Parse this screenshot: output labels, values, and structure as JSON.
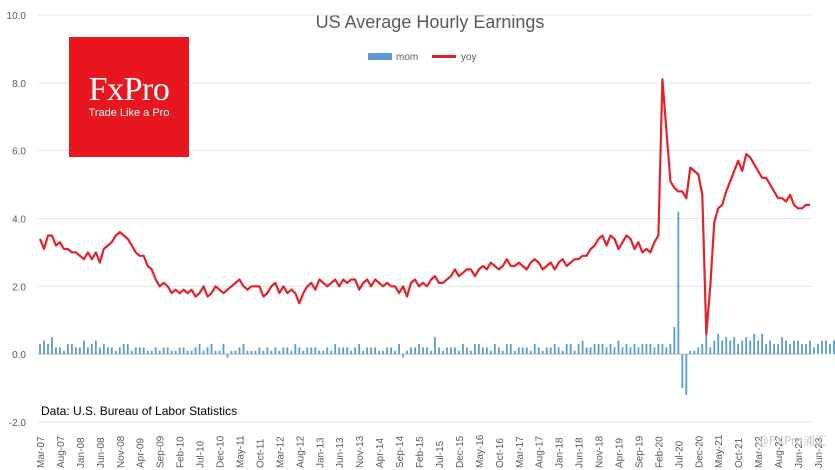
{
  "logo": {
    "word": "FxPro",
    "tagline": "Trade Like a Pro",
    "color": "#e8171f"
  },
  "source_note": "Data: U.S. Bureau of Labor Statistics",
  "watermark": "@FXPro浦汇",
  "chart_data": {
    "type": "bar+line",
    "title": "US Average Hourly Earnings",
    "xlabel": "",
    "ylabel": "",
    "ylim": [
      -2.0,
      10.0
    ],
    "yticks": [
      "-2.0",
      "0.0",
      "2.0",
      "4.0",
      "6.0",
      "8.0",
      "10.0"
    ],
    "grid": true,
    "legend_position": "top-center",
    "x_tick_labels": [
      "Mar-07",
      "Aug-07",
      "Jan-08",
      "Jun-08",
      "Nov-08",
      "Apr-09",
      "Sep-09",
      "Feb-10",
      "Jul-10",
      "Dec-10",
      "May-11",
      "Oct-11",
      "Mar-12",
      "Aug-12",
      "Jan-13",
      "Jun-13",
      "Nov-13",
      "Apr-14",
      "Sep-14",
      "Feb-15",
      "Jul-15",
      "Dec-15",
      "May-16",
      "Oct-16",
      "Mar-17",
      "Aug-17",
      "Jan-18",
      "Jun-18",
      "Nov-18",
      "Apr-19",
      "Sep-19",
      "Feb-20",
      "Jul-20",
      "Dec-20",
      "May-21",
      "Oct-21",
      "Mar-22",
      "Aug-22",
      "Jan-23",
      "Jun-23"
    ],
    "series": [
      {
        "name": "mom",
        "kind": "bar",
        "color": "#5b9bd5",
        "values": [
          0.3,
          0.4,
          0.3,
          0.5,
          0.2,
          0.2,
          0.1,
          0.3,
          0.3,
          0.2,
          0.2,
          0.4,
          0.2,
          0.3,
          0.4,
          0.2,
          0.3,
          0.2,
          0.2,
          0.1,
          0.2,
          0.3,
          0.3,
          0.1,
          0.2,
          0.2,
          0.2,
          0.1,
          0.1,
          0.2,
          0.1,
          0.2,
          0.2,
          0.1,
          0.1,
          0.2,
          0.2,
          0.1,
          0.1,
          0.2,
          0.3,
          0.1,
          0.2,
          0.3,
          0.1,
          0.1,
          0.3,
          -0.1,
          0.1,
          0.1,
          0.2,
          0.3,
          0.1,
          0.1,
          0.1,
          0.2,
          0.1,
          0.2,
          0.1,
          0.2,
          0.1,
          0.2,
          0.2,
          0.1,
          0.3,
          0.2,
          0.1,
          0.2,
          0.2,
          0.2,
          0.1,
          0.1,
          0.2,
          0.1,
          0.3,
          0.2,
          0.2,
          0.2,
          0.1,
          0.2,
          0.3,
          0.1,
          0.2,
          0.2,
          0.2,
          0.1,
          0.1,
          0.2,
          0.2,
          0.1,
          0.3,
          -0.1,
          0.1,
          0.2,
          0.2,
          0.3,
          0.2,
          0.2,
          0.1,
          0.5,
          0.2,
          0.1,
          0.2,
          0.2,
          0.2,
          0.1,
          0.3,
          0.2,
          0.1,
          0.3,
          0.3,
          0.2,
          0.2,
          0.1,
          0.3,
          0.2,
          0.1,
          0.3,
          0.3,
          0.1,
          0.2,
          0.2,
          0.2,
          0.1,
          0.3,
          0.2,
          0.1,
          0.2,
          0.2,
          0.3,
          0.2,
          0.1,
          0.3,
          0.3,
          0.1,
          0.3,
          0.4,
          0.2,
          0.2,
          0.3,
          0.3,
          0.3,
          0.2,
          0.3,
          0.2,
          0.4,
          0.2,
          0.3,
          0.2,
          0.3,
          0.2,
          0.3,
          0.3,
          0.3,
          0.2,
          0.3,
          0.3,
          0.2,
          0.3,
          0.8,
          4.2,
          -1.0,
          -1.2,
          0.1,
          0.1,
          0.2,
          0.3,
          0.9,
          0.2,
          0.4,
          0.6,
          0.4,
          0.5,
          0.4,
          0.5,
          0.3,
          0.4,
          0.5,
          0.4,
          0.6,
          0.4,
          0.6,
          0.3,
          0.4,
          0.3,
          0.3,
          0.5,
          0.4,
          0.3,
          0.4,
          0.4,
          0.3,
          0.3,
          0.4,
          0.2,
          0.3,
          0.4,
          0.4,
          0.3,
          0.4,
          0.4
        ]
      },
      {
        "name": "yoy",
        "kind": "line",
        "color": "#e3222a",
        "values": [
          3.4,
          3.1,
          3.5,
          3.5,
          3.2,
          3.3,
          3.1,
          3.1,
          3.0,
          3.0,
          2.9,
          2.8,
          3.0,
          2.8,
          3.0,
          2.7,
          3.1,
          3.2,
          3.3,
          3.5,
          3.6,
          3.5,
          3.4,
          3.2,
          3.0,
          2.9,
          2.9,
          2.6,
          2.5,
          2.2,
          2.0,
          2.1,
          2.0,
          1.8,
          1.9,
          1.8,
          1.9,
          1.8,
          1.9,
          1.7,
          1.8,
          2.0,
          1.7,
          1.8,
          2.0,
          1.9,
          1.8,
          1.9,
          2.0,
          2.1,
          2.2,
          2.0,
          1.9,
          2.0,
          2.0,
          2.0,
          1.7,
          1.8,
          2.0,
          2.1,
          1.8,
          2.0,
          1.8,
          1.9,
          1.8,
          1.5,
          1.8,
          2.0,
          2.1,
          1.9,
          2.2,
          2.1,
          2.0,
          2.1,
          2.2,
          2.0,
          2.2,
          2.1,
          2.2,
          2.2,
          1.9,
          2.1,
          2.2,
          2.0,
          2.2,
          2.1,
          2.0,
          2.1,
          2.0,
          2.0,
          1.8,
          2.0,
          1.7,
          2.1,
          2.2,
          2.0,
          2.1,
          2.0,
          2.2,
          2.3,
          2.1,
          2.1,
          2.2,
          2.3,
          2.5,
          2.3,
          2.4,
          2.5,
          2.5,
          2.3,
          2.5,
          2.6,
          2.5,
          2.7,
          2.6,
          2.5,
          2.6,
          2.8,
          2.6,
          2.6,
          2.7,
          2.6,
          2.5,
          2.7,
          2.8,
          2.7,
          2.5,
          2.6,
          2.7,
          2.5,
          2.7,
          2.8,
          2.6,
          2.7,
          2.8,
          2.8,
          2.9,
          2.9,
          3.1,
          3.2,
          3.4,
          3.5,
          3.2,
          3.5,
          3.4,
          3.1,
          3.3,
          3.5,
          3.4,
          3.1,
          3.3,
          3.0,
          3.1,
          3.0,
          3.3,
          3.5,
          8.1,
          6.6,
          5.1,
          4.9,
          4.8,
          4.8,
          4.6,
          5.5,
          5.4,
          5.3,
          4.7,
          0.6,
          2.0,
          3.9,
          4.3,
          4.4,
          4.8,
          5.1,
          5.4,
          5.7,
          5.4,
          5.9,
          5.8,
          5.6,
          5.4,
          5.2,
          5.2,
          5.0,
          4.8,
          4.6,
          4.6,
          4.5,
          4.7,
          4.4,
          4.3,
          4.3,
          4.4,
          4.4
        ]
      }
    ]
  }
}
